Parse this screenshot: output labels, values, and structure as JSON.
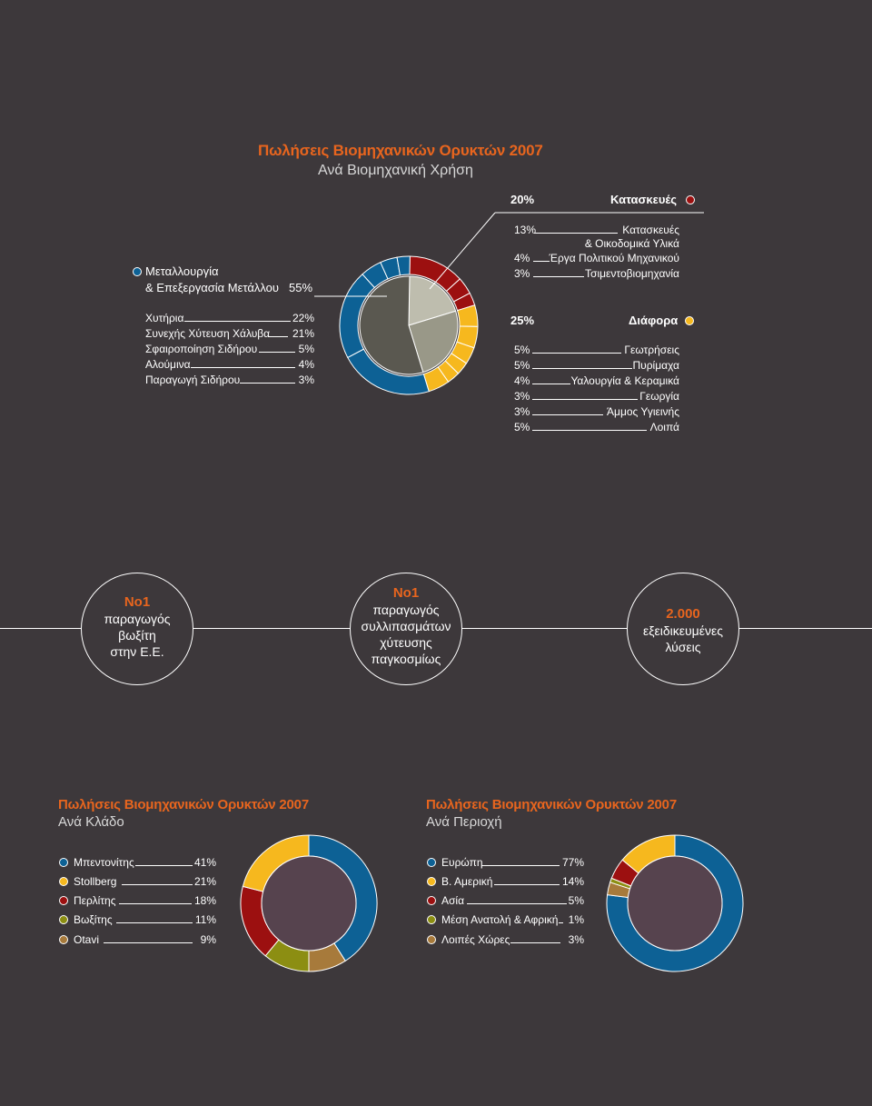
{
  "colors": {
    "background": "#3d383b",
    "accent_orange": "#e8651e",
    "blue": "#0d6195",
    "red": "#9c1010",
    "yellow": "#f6b81e",
    "olive": "#8c8e12",
    "brown": "#a77a3b",
    "center_dark": "#56434e",
    "inner_gray_dark": "#5a5850",
    "inner_gray_light": "#bebdae",
    "inner_gray_mid": "#999888"
  },
  "top": {
    "title": "Πωλήσεις Βιομηχανικών Ορυκτών 2007",
    "subtitle": "Ανά Βιομηχανική Χρήση",
    "left_group": {
      "name_line1": "Μεταλλουργία",
      "name_line2": "& Επεξεργασία Μετάλλου",
      "pct": "55%",
      "icon": "blue-dot",
      "items": [
        {
          "label": "Χυτήρια",
          "pct": "22%"
        },
        {
          "label": "Συνεχής Χύτευση Χάλυβα",
          "pct": "21%"
        },
        {
          "label": "Σφαιροποίηση Σιδήρου",
          "pct": "5%"
        },
        {
          "label": "Αλούμινα",
          "pct": "4%"
        },
        {
          "label": "Παραγωγή Σιδήρου",
          "pct": "3%"
        }
      ]
    },
    "construction_group": {
      "name": "Κατασκευές",
      "pct": "20%",
      "icon": "red-dot",
      "items": [
        {
          "pct": "13%",
          "label_line1": "Κατασκευές",
          "label_line2": "& Οικοδομικά Υλικά"
        },
        {
          "pct": "4%",
          "label_line1": "Έργα Πολιτικού Μηχανικού",
          "label_line2": ""
        },
        {
          "pct": "3%",
          "label_line1": "Τσιμεντοβιομηχανία",
          "label_line2": ""
        }
      ]
    },
    "other_group": {
      "name": "Διάφορα",
      "pct": "25%",
      "icon": "yellow-dot",
      "items": [
        {
          "pct": "5%",
          "label": "Γεωτρήσεις"
        },
        {
          "pct": "5%",
          "label": "Πυρίμαχα"
        },
        {
          "pct": "4%",
          "label": "Υαλουργία & Κεραμικά"
        },
        {
          "pct": "3%",
          "label": "Γεωργία"
        },
        {
          "pct": "3%",
          "label": "Άμμος Υγιεινής"
        },
        {
          "pct": "5%",
          "label": "Λοιπά"
        }
      ]
    }
  },
  "facts": [
    {
      "big": "No1",
      "lines": [
        "παραγωγός",
        "βωξίτη",
        "στην Ε.Ε."
      ]
    },
    {
      "big": "No1",
      "lines": [
        "παραγωγός",
        "συλλιπασμάτων",
        "χύτευσης",
        "παγκοσμίως"
      ]
    },
    {
      "big": "2.000",
      "lines": [
        "εξειδικευμένες",
        "λύσεις"
      ]
    }
  ],
  "sector": {
    "title": "Πωλήσεις Βιομηχανικών Ορυκτών 2007",
    "subtitle": "Ανά Κλάδο",
    "items": [
      {
        "label": "Μπεντονίτης",
        "pct": "41%",
        "icon": "blue-dot"
      },
      {
        "label": "Stollberg",
        "pct": "21%",
        "icon": "yellow-dot"
      },
      {
        "label": "Περλίτης",
        "pct": "18%",
        "icon": "red-dot"
      },
      {
        "label": "Βωξίτης",
        "pct": "11%",
        "icon": "olive-dot"
      },
      {
        "label": "Otavi",
        "pct": "9%",
        "icon": "brown-dot"
      }
    ]
  },
  "region": {
    "title": "Πωλήσεις Βιομηχανικών Ορυκτών 2007",
    "subtitle": "Ανά Περιοχή",
    "items": [
      {
        "label": "Ευρώπη",
        "pct": "77%",
        "icon": "blue-dot"
      },
      {
        "label": "Β. Αμερική",
        "pct": "14%",
        "icon": "yellow-dot"
      },
      {
        "label": "Ασία",
        "pct": "5%",
        "icon": "red-dot"
      },
      {
        "label": "Μέση Ανατολή & Αφρική",
        "pct": "1%",
        "icon": "olive-dot"
      },
      {
        "label": "Λοιπές Χώρες",
        "pct": "3%",
        "icon": "brown-dot"
      }
    ]
  },
  "chart_data": [
    {
      "type": "pie",
      "title": "Πωλήσεις Βιομηχανικών Ορυκτών 2007",
      "subtitle": "Ανά Βιομηχανική Χρήση",
      "unit": "%",
      "inner_series": [
        {
          "name": "Μεταλλουργία & Επεξεργασία Μετάλλου",
          "value": 55,
          "color": "#5a5850"
        },
        {
          "name": "Κατασκευές",
          "value": 20,
          "color": "#bebdae"
        },
        {
          "name": "Διάφορα",
          "value": 25,
          "color": "#999888"
        }
      ],
      "outer_series": [
        {
          "name": "Χυτήρια",
          "value": 22,
          "color": "#0d6195"
        },
        {
          "name": "Συνεχής Χύτευση Χάλυβα",
          "value": 21,
          "color": "#0d6195"
        },
        {
          "name": "Σφαιροποίηση Σιδήρου",
          "value": 5,
          "color": "#0d6195"
        },
        {
          "name": "Αλούμινα",
          "value": 4,
          "color": "#0d6195"
        },
        {
          "name": "Παραγωγή Σιδήρου",
          "value": 3,
          "color": "#0d6195"
        },
        {
          "name": "Κατασκευές & Οικοδομικά Υλικά",
          "value": 13,
          "color": "#9c1010"
        },
        {
          "name": "Έργα Πολιτικού Μηχανικού",
          "value": 4,
          "color": "#9c1010"
        },
        {
          "name": "Τσιμεντοβιομηχανία",
          "value": 3,
          "color": "#9c1010"
        },
        {
          "name": "Γεωτρήσεις",
          "value": 5,
          "color": "#f6b81e"
        },
        {
          "name": "Πυρίμαχα",
          "value": 5,
          "color": "#f6b81e"
        },
        {
          "name": "Υαλουργία & Κεραμικά",
          "value": 4,
          "color": "#f6b81e"
        },
        {
          "name": "Γεωργία",
          "value": 3,
          "color": "#f6b81e"
        },
        {
          "name": "Άμμος Υγιεινής",
          "value": 3,
          "color": "#f6b81e"
        },
        {
          "name": "Λοιπά",
          "value": 5,
          "color": "#f6b81e"
        }
      ]
    },
    {
      "type": "pie",
      "title": "Πωλήσεις Βιομηχανικών Ορυκτών 2007",
      "subtitle": "Ανά Κλάδο",
      "unit": "%",
      "categories": [
        "Μπεντονίτης",
        "Stollberg",
        "Περλίτης",
        "Βωξίτης",
        "Otavi"
      ],
      "values": [
        41,
        21,
        18,
        11,
        9
      ],
      "colors": [
        "#0d6195",
        "#f6b81e",
        "#9c1010",
        "#8c8e12",
        "#a77a3b"
      ],
      "draw_order": [
        "Μπεντονίτης",
        "Otavi",
        "Βωξίτης",
        "Περλίτης",
        "Stollberg"
      ]
    },
    {
      "type": "pie",
      "title": "Πωλήσεις Βιομηχανικών Ορυκτών 2007",
      "subtitle": "Ανά Περιοχή",
      "unit": "%",
      "categories": [
        "Ευρώπη",
        "Β. Αμερική",
        "Ασία",
        "Μέση Ανατολή & Αφρική",
        "Λοιπές Χώρες"
      ],
      "values": [
        77,
        14,
        5,
        1,
        3
      ],
      "colors": [
        "#0d6195",
        "#f6b81e",
        "#9c1010",
        "#8c8e12",
        "#a77a3b"
      ],
      "draw_order": [
        "Ευρώπη",
        "Λοιπές Χώρες",
        "Μέση Ανατολή & Αφρική",
        "Ασία",
        "Β. Αμερική"
      ]
    }
  ]
}
